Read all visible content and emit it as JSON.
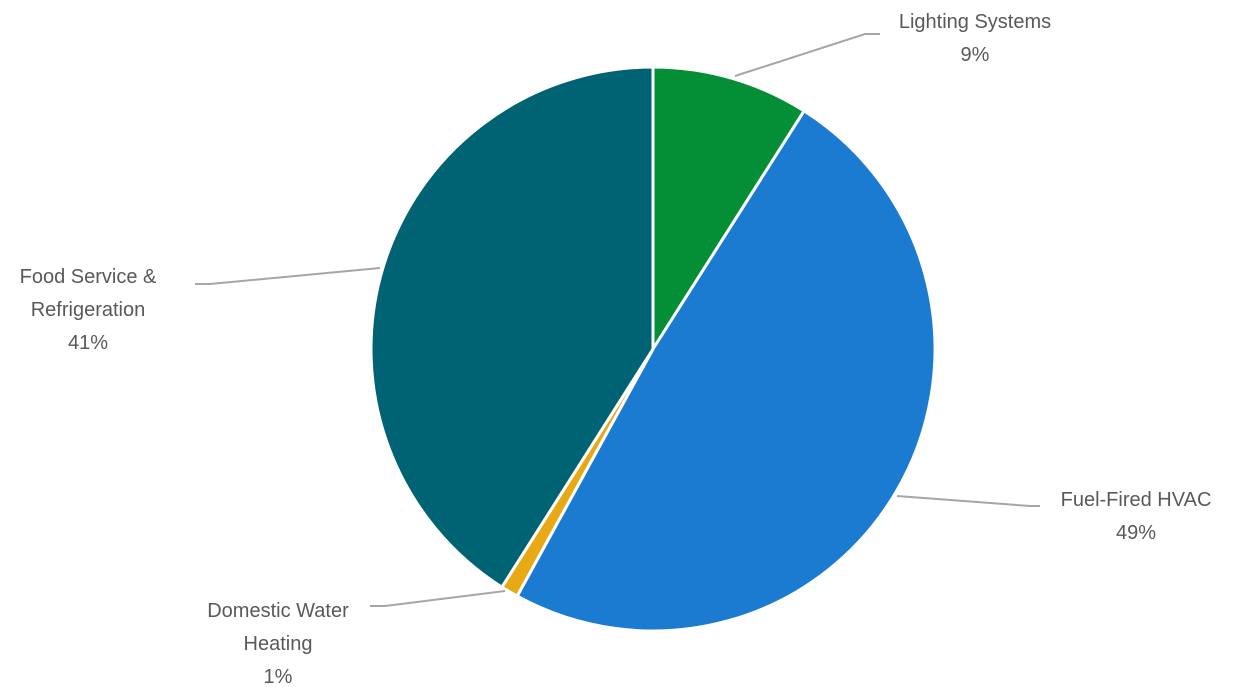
{
  "chart_data": {
    "type": "pie",
    "title": "",
    "start_angle_deg": 0,
    "direction": "clockwise",
    "slices": [
      {
        "label_lines": [
          "Lighting Systems"
        ],
        "value": 9,
        "display": "9%",
        "color": "#048F36"
      },
      {
        "label_lines": [
          "Fuel-Fired HVAC"
        ],
        "value": 49,
        "display": "49%",
        "color": "#1A7BD1"
      },
      {
        "label_lines": [
          "Domestic Water",
          "Heating"
        ],
        "value": 1,
        "display": "1%",
        "color": "#E8A915"
      },
      {
        "label_lines": [
          "Food Service &",
          "Refrigeration"
        ],
        "value": 41,
        "display": "41%",
        "color": "#006373"
      }
    ],
    "legend": "none",
    "leader_lines": true,
    "leader_color": "#A6A6A6"
  }
}
